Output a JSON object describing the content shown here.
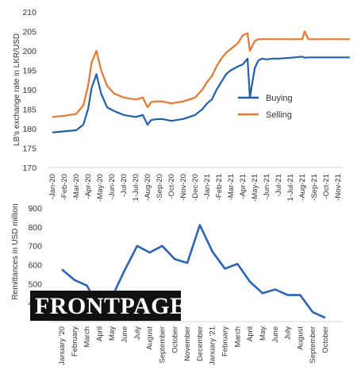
{
  "colors": {
    "buying": "#1f5fb0",
    "selling": "#e8762c",
    "remittance": "#2a63b8",
    "logo_bg": "#111111",
    "logo_fg": "#ffffff"
  },
  "logo": {
    "text": "FRONTPAGE"
  },
  "chart_data": [
    {
      "type": "line",
      "ylabel": "LB's exchange rate in LKR/USD",
      "xlabel": "",
      "ylim": [
        170,
        210
      ],
      "yticks": [
        170,
        175,
        180,
        185,
        190,
        195,
        200,
        205,
        210
      ],
      "x_tick_labels": [
        "-Jan-20",
        "-Feb-20",
        "-Mar-20",
        "-Apr-20",
        "-May-20",
        "-Jun-20",
        "-Jul-20",
        "1-Jul-20",
        "-Aug-20",
        "-Sep-20",
        "-Oct-20",
        "-Nov-20",
        "-Dec-20",
        "-Jan-21",
        "-Feb-21",
        "-Mar-21",
        "-Apr-21",
        "-May-21",
        "-Jun-21",
        "-Jul-21",
        "1-Jul-21",
        "-Aug-21",
        "-Sep-21",
        "-Oct-21",
        "-Nov-21"
      ],
      "legend_placement": "right",
      "grid": false,
      "series": [
        {
          "name": "Buying",
          "color": "#1f5fb0",
          "x": [
            0,
            1,
            2,
            2.6,
            3.0,
            3.3,
            3.7,
            4.1,
            4.6,
            5.2,
            6,
            7,
            7.6,
            8.0,
            8.3,
            8.7,
            9.2,
            10,
            11,
            12,
            12.6,
            13.0,
            13.4,
            13.8,
            14.2,
            14.6,
            15,
            15.6,
            16.0,
            16.4,
            16.6,
            17,
            17.3,
            17.6,
            18,
            18.5,
            19,
            20,
            21,
            21.2,
            21.5,
            22,
            23,
            24,
            25
          ],
          "values": [
            179,
            179.3,
            179.6,
            181,
            185,
            190.5,
            194,
            189,
            185.5,
            184.5,
            183.5,
            183,
            183.5,
            181,
            182.2,
            182.4,
            182.5,
            182,
            182.5,
            183.5,
            185,
            186.5,
            187.5,
            190,
            192,
            194,
            195,
            196,
            196.5,
            198,
            188,
            195.5,
            197.5,
            198,
            197.8,
            198,
            198,
            198.2,
            198.5,
            198.2,
            198.3,
            198.3,
            198.3,
            198.3,
            198.3
          ]
        },
        {
          "name": "Selling",
          "color": "#e8762c",
          "x": [
            0,
            1,
            2,
            2.6,
            3.0,
            3.3,
            3.7,
            4.1,
            4.6,
            5.2,
            6,
            7,
            7.6,
            8.0,
            8.3,
            8.7,
            9.2,
            10,
            11,
            12,
            12.6,
            13.0,
            13.4,
            13.8,
            14.2,
            14.6,
            15,
            15.6,
            16.0,
            16.4,
            16.6,
            17,
            17.3,
            17.6,
            18,
            18.5,
            19,
            20,
            21,
            21.2,
            21.5,
            22,
            23,
            24,
            25
          ],
          "values": [
            183,
            183.3,
            183.8,
            186,
            191,
            197,
            200,
            195,
            191,
            189,
            188,
            187.5,
            188,
            185.5,
            186.8,
            187,
            187,
            186.5,
            187,
            188,
            190,
            192,
            193.5,
            196,
            198,
            199.5,
            200.5,
            202,
            204,
            204.5,
            200,
            202.5,
            203,
            203,
            203,
            203,
            203,
            203,
            203,
            205,
            203,
            203,
            203,
            203,
            203
          ]
        }
      ]
    },
    {
      "type": "line",
      "ylabel": "Remittances in USD million",
      "xlabel": "",
      "ylim": [
        300,
        900
      ],
      "yticks": [
        400,
        500,
        600,
        700,
        800,
        900
      ],
      "categories": [
        "January '20",
        "February",
        "March",
        "April",
        "May",
        "June",
        "July",
        "August",
        "September",
        "October",
        "November",
        "December",
        "January '21",
        "February",
        "March",
        "April",
        "May",
        "June",
        "July",
        "August",
        "September",
        "October"
      ],
      "series": [
        {
          "name": "",
          "color": "#2a63b8",
          "values": [
            576,
            520,
            490,
            370,
            430,
            570,
            700,
            665,
            700,
            630,
            610,
            810,
            670,
            580,
            605,
            510,
            450,
            470,
            440,
            440,
            350,
            320
          ]
        }
      ]
    }
  ]
}
